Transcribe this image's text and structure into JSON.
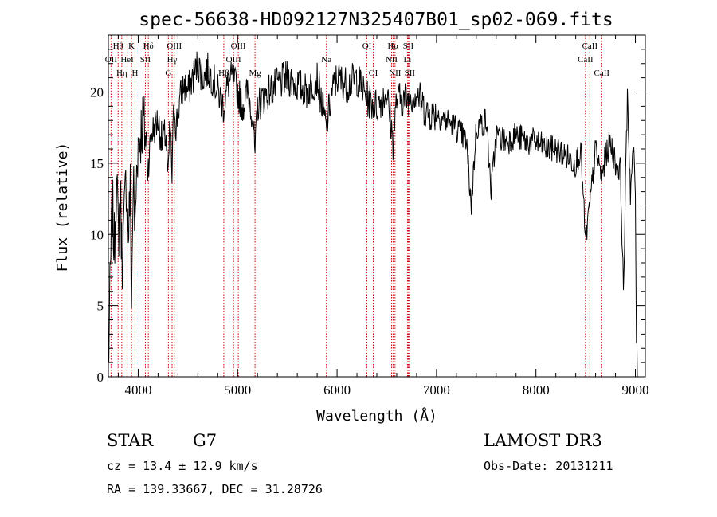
{
  "chart_data": {
    "type": "line",
    "title": "spec-56638-HD092127N325407B01_sp02-069.fits",
    "xlabel": "Wavelength (Å)",
    "ylabel": "Flux (relative)",
    "xlim": [
      3700,
      9100
    ],
    "ylim": [
      0,
      24
    ],
    "x_ticks": [
      4000,
      5000,
      6000,
      7000,
      8000,
      9000
    ],
    "y_ticks": [
      0,
      5,
      10,
      15,
      20
    ],
    "grid": false,
    "series": [
      {
        "name": "flux",
        "x": [
          3700,
          3720,
          3740,
          3760,
          3780,
          3800,
          3820,
          3840,
          3860,
          3880,
          3900,
          3920,
          3933,
          3950,
          3968,
          3990,
          4020,
          4050,
          4080,
          4101,
          4130,
          4160,
          4200,
          4240,
          4280,
          4300,
          4320,
          4340,
          4360,
          4380,
          4420,
          4460,
          4500,
          4550,
          4600,
          4650,
          4700,
          4750,
          4800,
          4861,
          4900,
          4950,
          5000,
          5050,
          5100,
          5150,
          5175,
          5200,
          5300,
          5400,
          5500,
          5600,
          5700,
          5800,
          5890,
          5950,
          6000,
          6100,
          6200,
          6300,
          6400,
          6500,
          6563,
          6600,
          6700,
          6800,
          6900,
          7000,
          7100,
          7200,
          7300,
          7350,
          7400,
          7500,
          7550,
          7600,
          7700,
          7800,
          7900,
          8000,
          8100,
          8200,
          8300,
          8400,
          8450,
          8498,
          8542,
          8600,
          8662,
          8700,
          8750,
          8800,
          8850,
          8880,
          8920,
          8950,
          8980,
          9000,
          9010,
          9020
        ],
        "values": [
          0.5,
          7,
          12,
          9,
          14,
          10,
          13,
          8,
          11,
          14,
          10,
          13,
          5,
          14,
          10,
          16,
          17,
          18,
          16.5,
          15,
          17,
          17.5,
          18,
          16.5,
          17,
          13.5,
          18,
          14,
          19.5,
          17.5,
          19.5,
          20.5,
          20,
          21,
          22,
          21,
          21.5,
          21,
          20,
          19,
          20.5,
          21,
          20,
          19,
          20,
          18.5,
          15.5,
          19,
          20,
          20.5,
          21,
          20.5,
          20,
          21,
          17.5,
          20,
          21,
          20.5,
          21,
          19.5,
          19,
          20,
          16.5,
          19.5,
          19.5,
          20,
          18.5,
          18.5,
          18,
          17.5,
          16.5,
          12,
          17.5,
          18,
          13,
          17,
          16.5,
          17,
          16.5,
          16.5,
          16,
          16,
          15.5,
          15,
          16,
          9.5,
          12,
          16,
          14,
          15.5,
          16.5,
          15,
          14.5,
          6,
          20,
          13,
          16,
          13,
          3,
          0
        ]
      }
    ],
    "line_markers": [
      {
        "name": "Hθ",
        "wavelength": 3798,
        "row": 1
      },
      {
        "name": "OII",
        "wavelength": 3727,
        "row": 2
      },
      {
        "name": "Hη",
        "wavelength": 3835,
        "row": 3
      },
      {
        "name": "HeI",
        "wavelength": 3889,
        "row": 2
      },
      {
        "name": "K",
        "wavelength": 3933,
        "row": 1
      },
      {
        "name": "H",
        "wavelength": 3968,
        "row": 3
      },
      {
        "name": "SII",
        "wavelength": 4072,
        "row": 2
      },
      {
        "name": "Hδ",
        "wavelength": 4102,
        "row": 1
      },
      {
        "name": "OIII",
        "wavelength": 4363,
        "row": 1
      },
      {
        "name": "Hγ",
        "wavelength": 4341,
        "row": 2
      },
      {
        "name": "G",
        "wavelength": 4304,
        "row": 3
      },
      {
        "name": "OIII",
        "wavelength": 5007,
        "row": 1
      },
      {
        "name": "OIII",
        "wavelength": 4959,
        "row": 2
      },
      {
        "name": "Hβ",
        "wavelength": 4861,
        "row": 3
      },
      {
        "name": "Mg",
        "wavelength": 5175,
        "row": 3
      },
      {
        "name": "Na",
        "wavelength": 5893,
        "row": 2
      },
      {
        "name": "OI",
        "wavelength": 6300,
        "row": 1
      },
      {
        "name": "OI",
        "wavelength": 6364,
        "row": 3
      },
      {
        "name": "Hα",
        "wavelength": 6563,
        "row": 1
      },
      {
        "name": "NII",
        "wavelength": 6548,
        "row": 2
      },
      {
        "name": "NII",
        "wavelength": 6583,
        "row": 3
      },
      {
        "name": "SII",
        "wavelength": 6716,
        "row": 1
      },
      {
        "name": "Li",
        "wavelength": 6708,
        "row": 2
      },
      {
        "name": "SII",
        "wavelength": 6731,
        "row": 3
      },
      {
        "name": "CaII",
        "wavelength": 8542,
        "row": 1
      },
      {
        "name": "CaII",
        "wavelength": 8498,
        "row": 2
      },
      {
        "name": "CaII",
        "wavelength": 8662,
        "row": 3
      }
    ]
  },
  "info": {
    "object_class": "STAR",
    "subclass": "G7",
    "survey": "LAMOST DR3",
    "cz": "cz = 13.4 ± 12.9 km/s",
    "obs_date": "Obs-Date: 20131211",
    "radec": "RA = 139.33667, DEC =  31.28726"
  },
  "colors": {
    "spectrum": "#000000",
    "line_marker": "#cc0000",
    "axes": "#000000",
    "background": "#ffffff"
  }
}
